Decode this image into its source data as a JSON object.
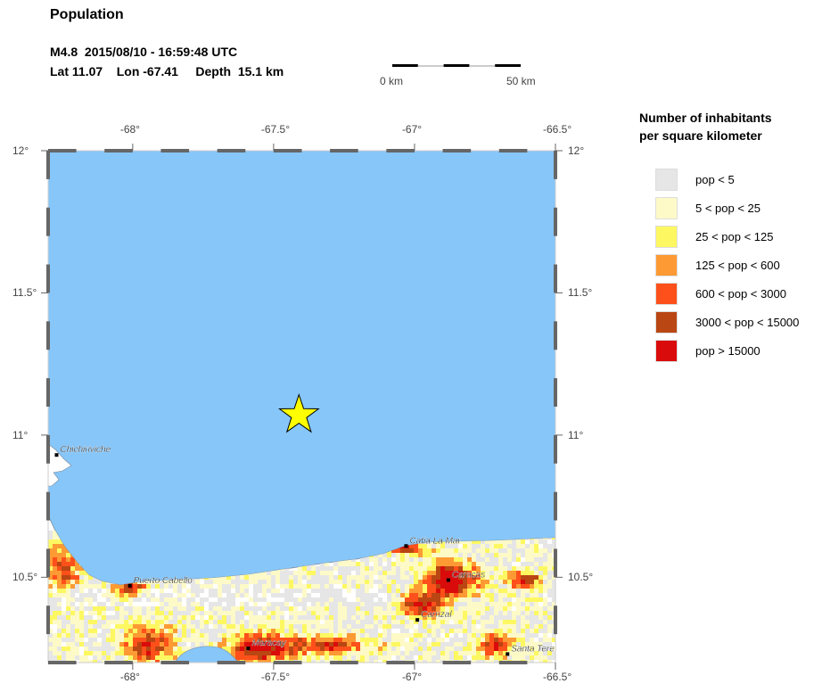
{
  "title": "Population",
  "event": {
    "line1": "M4.8  2015/08/10 - 16:59:48 UTC",
    "line2": "Lat 11.07    Lon -67.41     Depth  15.1 km",
    "magnitude": "M4.8",
    "lat": 11.07,
    "lon": -67.41,
    "depth_km": 15.1
  },
  "scale_bar": {
    "start_label": "0 km",
    "end_label": "50 km"
  },
  "map": {
    "lon_range": [
      -68.3,
      -66.5
    ],
    "lat_range": [
      10.2,
      12.0
    ],
    "x_ticks": [
      "-68°",
      "-67.5°",
      "-67°",
      "-66.5°"
    ],
    "y_ticks": [
      "12°",
      "11.5°",
      "11°",
      "10.5°"
    ],
    "water_color": "#87c6f9",
    "land_color": "#ffffff",
    "epicenter": {
      "lon": -67.41,
      "lat": 11.07,
      "color": "#ffff00",
      "icon": "star-icon"
    },
    "cities": [
      {
        "name": "Chichiriviche",
        "lon": -68.27,
        "lat": 10.93
      },
      {
        "name": "Puerto Cabello",
        "lon": -68.01,
        "lat": 10.47
      },
      {
        "name": "Catia La Mar",
        "lon": -67.03,
        "lat": 10.61
      },
      {
        "name": "Caracas",
        "lon": -66.88,
        "lat": 10.49
      },
      {
        "name": "Carrizal",
        "lon": -66.99,
        "lat": 10.35
      },
      {
        "name": "Maracay",
        "lon": -67.59,
        "lat": 10.25
      },
      {
        "name": "Santa Tere",
        "lon": -66.67,
        "lat": 10.23
      }
    ]
  },
  "legend": {
    "title_line1": "Number of inhabitants",
    "title_line2": "per square kilometer",
    "items": [
      {
        "label": "pop < 5",
        "color": "#e6e6e6"
      },
      {
        "label": "5 < pop < 25",
        "color": "#fdfac8"
      },
      {
        "label": "25 < pop < 125",
        "color": "#fdf861"
      },
      {
        "label": "125 < pop < 600",
        "color": "#fd9a34"
      },
      {
        "label": "600 < pop < 3000",
        "color": "#fe501a"
      },
      {
        "label": "3000 < pop < 15000",
        "color": "#b94613"
      },
      {
        "label": "pop > 15000",
        "color": "#d90b0b"
      }
    ]
  }
}
